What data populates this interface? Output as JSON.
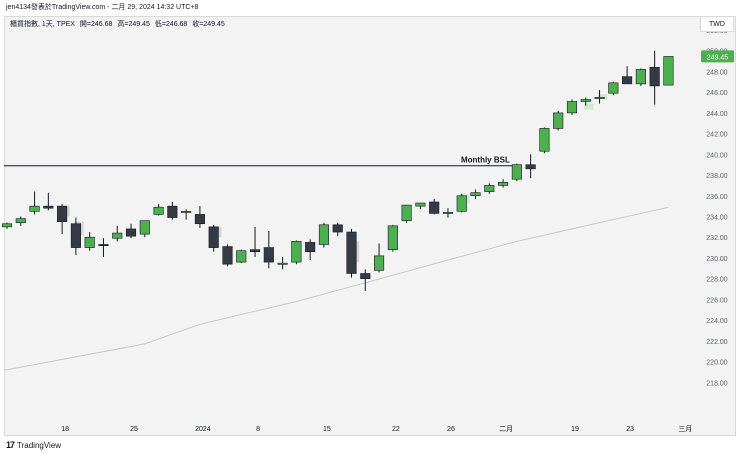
{
  "header": {
    "title": "jen4134發表於TradingView.com - 二月 29, 2024 14:32 UTC+8"
  },
  "legend": {
    "symbol": "櫃買指數, 1天, TPEX",
    "open": "開=246.68",
    "high": "高=249.45",
    "low": "低=246.68",
    "close": "收=249.45"
  },
  "currency": "TWD",
  "footer": {
    "brand": "TradingView"
  },
  "colors": {
    "up": "#4caf50",
    "down": "#363a45",
    "line": "#131722",
    "ma": "#c8c8c8",
    "ghost": "#cfe9cf",
    "ghost_down": "#d6d6d6"
  },
  "chart_data": {
    "type": "candlestick",
    "title": "櫃買指數, 1天, TPEX",
    "ylim": [
      216,
      252
    ],
    "yticks": [
      218,
      220,
      222,
      224,
      226,
      228,
      230,
      232,
      234,
      236,
      238,
      240,
      242,
      244,
      246,
      248,
      250,
      252
    ],
    "last_price": "249.45",
    "xticks": [
      {
        "i": 4,
        "label": "18"
      },
      {
        "i": 9,
        "label": "25"
      },
      {
        "i": 14,
        "label": "2024"
      },
      {
        "i": 18,
        "label": "8"
      },
      {
        "i": 23,
        "label": "15"
      },
      {
        "i": 28,
        "label": "22"
      },
      {
        "i": 32,
        "label": "26"
      },
      {
        "i": 36,
        "label": "二月"
      },
      {
        "i": 41,
        "label": "19"
      },
      {
        "i": 45,
        "label": "23"
      },
      {
        "i": 49,
        "label": "三月"
      }
    ],
    "annotation": {
      "label": "Monthly BSL",
      "value": 238.9
    },
    "moving_average": [
      {
        "i": 0,
        "v": 219.2
      },
      {
        "i": 10,
        "v": 221.7
      },
      {
        "i": 14,
        "v": 223.6
      },
      {
        "i": 21,
        "v": 225.8
      },
      {
        "i": 26,
        "v": 227.6
      },
      {
        "i": 32,
        "v": 229.8
      },
      {
        "i": 37,
        "v": 231.6
      },
      {
        "i": 42,
        "v": 233.1
      },
      {
        "i": 48,
        "v": 234.9
      }
    ],
    "candles": [
      {
        "o": 233.0,
        "h": 233.4,
        "l": 232.8,
        "c": 233.3
      },
      {
        "o": 233.4,
        "h": 234.0,
        "l": 233.1,
        "c": 233.8
      },
      {
        "o": 234.5,
        "h": 236.4,
        "l": 234.2,
        "c": 235.0
      },
      {
        "o": 235.0,
        "h": 236.3,
        "l": 234.6,
        "c": 234.8
      },
      {
        "o": 235.0,
        "h": 235.2,
        "l": 232.3,
        "c": 233.5
      },
      {
        "o": 233.3,
        "h": 233.9,
        "l": 230.3,
        "c": 231.0
      },
      {
        "o": 231.0,
        "h": 232.5,
        "l": 230.7,
        "c": 232.0
      },
      {
        "o": 231.3,
        "h": 231.9,
        "l": 230.1,
        "c": 231.2
      },
      {
        "o": 231.9,
        "h": 233.1,
        "l": 231.6,
        "c": 232.4
      },
      {
        "o": 232.8,
        "h": 233.3,
        "l": 231.9,
        "c": 232.1
      },
      {
        "o": 232.3,
        "h": 233.6,
        "l": 232.0,
        "c": 233.6
      },
      {
        "o": 234.2,
        "h": 235.2,
        "l": 234.1,
        "c": 234.9
      },
      {
        "o": 235.0,
        "h": 235.4,
        "l": 233.7,
        "c": 233.9
      },
      {
        "o": 234.4,
        "h": 234.7,
        "l": 233.7,
        "c": 234.5
      },
      {
        "o": 234.2,
        "h": 235.0,
        "l": 232.9,
        "c": 233.3
      },
      {
        "o": 233.0,
        "h": 233.2,
        "l": 230.6,
        "c": 231.0
      },
      {
        "o": 231.1,
        "h": 231.3,
        "l": 229.2,
        "c": 229.4
      },
      {
        "o": 229.6,
        "h": 230.8,
        "l": 229.5,
        "c": 230.7
      },
      {
        "o": 230.8,
        "h": 233.0,
        "l": 230.1,
        "c": 230.6
      },
      {
        "o": 231.0,
        "h": 232.6,
        "l": 229.0,
        "c": 229.6
      },
      {
        "o": 229.5,
        "h": 230.1,
        "l": 228.9,
        "c": 229.5
      },
      {
        "o": 229.6,
        "h": 231.7,
        "l": 229.4,
        "c": 231.6
      },
      {
        "o": 231.5,
        "h": 231.8,
        "l": 229.8,
        "c": 230.6
      },
      {
        "o": 231.3,
        "h": 233.4,
        "l": 231.0,
        "c": 233.2
      },
      {
        "o": 233.2,
        "h": 233.4,
        "l": 232.1,
        "c": 232.5
      },
      {
        "o": 232.5,
        "h": 232.8,
        "l": 228.1,
        "c": 228.5
      },
      {
        "o": 228.5,
        "h": 228.9,
        "l": 226.8,
        "c": 228.0
      },
      {
        "o": 228.8,
        "h": 231.4,
        "l": 228.6,
        "c": 230.2
      },
      {
        "o": 230.8,
        "h": 233.2,
        "l": 230.6,
        "c": 233.1
      },
      {
        "o": 233.6,
        "h": 235.1,
        "l": 233.4,
        "c": 235.1
      },
      {
        "o": 235.0,
        "h": 235.3,
        "l": 234.7,
        "c": 235.3
      },
      {
        "o": 235.4,
        "h": 235.7,
        "l": 234.2,
        "c": 234.3
      },
      {
        "o": 234.3,
        "h": 234.8,
        "l": 233.9,
        "c": 234.4
      },
      {
        "o": 234.5,
        "h": 236.2,
        "l": 234.4,
        "c": 236.0
      },
      {
        "o": 236.0,
        "h": 236.6,
        "l": 235.7,
        "c": 236.3
      },
      {
        "o": 236.4,
        "h": 237.2,
        "l": 236.2,
        "c": 237.0
      },
      {
        "o": 237.0,
        "h": 237.6,
        "l": 236.8,
        "c": 237.3
      },
      {
        "o": 237.6,
        "h": 239.1,
        "l": 237.4,
        "c": 239.0
      },
      {
        "o": 239.0,
        "h": 240.0,
        "l": 237.7,
        "c": 238.6
      },
      {
        "o": 240.3,
        "h": 242.6,
        "l": 240.1,
        "c": 242.5
      },
      {
        "o": 242.5,
        "h": 244.2,
        "l": 242.3,
        "c": 244.0
      },
      {
        "o": 244.0,
        "h": 245.3,
        "l": 243.8,
        "c": 245.1
      },
      {
        "o": 245.1,
        "h": 245.5,
        "l": 244.7,
        "c": 245.3
      },
      {
        "o": 245.4,
        "h": 246.2,
        "l": 244.9,
        "c": 245.5
      },
      {
        "o": 245.9,
        "h": 247.0,
        "l": 245.7,
        "c": 246.9
      },
      {
        "o": 247.5,
        "h": 248.5,
        "l": 246.9,
        "c": 246.8
      },
      {
        "o": 246.8,
        "h": 248.3,
        "l": 246.6,
        "c": 248.2
      },
      {
        "o": 248.4,
        "h": 250.0,
        "l": 244.8,
        "c": 246.6
      },
      {
        "o": 246.68,
        "h": 249.45,
        "l": 246.68,
        "c": 249.45
      }
    ],
    "ghost_candles": [
      {
        "i": 4,
        "o": 235.0,
        "c": 234.0
      },
      {
        "i": 5,
        "o": 233.5,
        "c": 232.2
      },
      {
        "i": 15,
        "o": 233.0,
        "c": 232.0
      },
      {
        "i": 25,
        "o": 231.6,
        "c": 229.6
      },
      {
        "i": 33,
        "o": 235.3,
        "c": 236.2
      },
      {
        "i": 42,
        "o": 244.3,
        "c": 244.9
      },
      {
        "i": 43,
        "o": 245.3,
        "c": 245.8
      }
    ]
  }
}
